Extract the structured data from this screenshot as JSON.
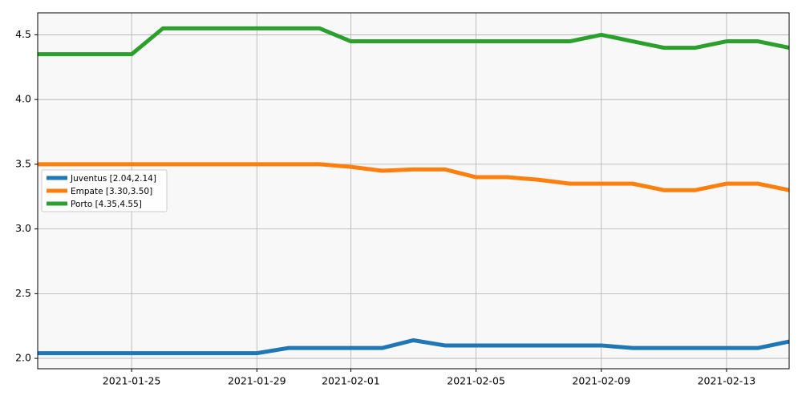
{
  "chart_data": {
    "type": "line",
    "x": [
      "2021-01-22",
      "2021-01-23",
      "2021-01-24",
      "2021-01-25",
      "2021-01-26",
      "2021-01-27",
      "2021-01-28",
      "2021-01-29",
      "2021-01-30",
      "2021-01-31",
      "2021-02-01",
      "2021-02-02",
      "2021-02-03",
      "2021-02-04",
      "2021-02-05",
      "2021-02-06",
      "2021-02-07",
      "2021-02-08",
      "2021-02-09",
      "2021-02-10",
      "2021-02-11",
      "2021-02-12",
      "2021-02-13",
      "2021-02-14",
      "2021-02-15"
    ],
    "series": [
      {
        "name": "Juventus [2.04,2.14]",
        "color": "#1f77b4",
        "values": [
          2.04,
          2.04,
          2.04,
          2.04,
          2.04,
          2.04,
          2.04,
          2.04,
          2.08,
          2.08,
          2.08,
          2.08,
          2.14,
          2.1,
          2.1,
          2.1,
          2.1,
          2.1,
          2.1,
          2.08,
          2.08,
          2.08,
          2.08,
          2.08,
          2.13
        ]
      },
      {
        "name": "Empate [3.30,3.50]",
        "color": "#ff7f0e",
        "values": [
          3.5,
          3.5,
          3.5,
          3.5,
          3.5,
          3.5,
          3.5,
          3.5,
          3.5,
          3.5,
          3.48,
          3.45,
          3.46,
          3.46,
          3.4,
          3.4,
          3.38,
          3.35,
          3.35,
          3.35,
          3.3,
          3.3,
          3.35,
          3.35,
          3.3
        ]
      },
      {
        "name": "Porto [4.35,4.55]",
        "color": "#2ca02c",
        "values": [
          4.35,
          4.35,
          4.35,
          4.35,
          4.55,
          4.55,
          4.55,
          4.55,
          4.55,
          4.55,
          4.45,
          4.45,
          4.45,
          4.45,
          4.45,
          4.45,
          4.45,
          4.45,
          4.5,
          4.45,
          4.4,
          4.4,
          4.45,
          4.45,
          4.4
        ]
      }
    ],
    "xlim": [
      "2021-01-22",
      "2021-02-15"
    ],
    "xticks": [
      "2021-01-25",
      "2021-01-29",
      "2021-02-01",
      "2021-02-05",
      "2021-02-09",
      "2021-02-13"
    ],
    "ylim": [
      1.92,
      4.67
    ],
    "yticks": [
      {
        "value": 2,
        "label": "2.0"
      },
      2.5,
      {
        "value": 3,
        "label": "3.0"
      },
      3.5,
      {
        "value": 4,
        "label": "4.0"
      },
      4.5
    ],
    "grid": true,
    "legend": "center left"
  }
}
